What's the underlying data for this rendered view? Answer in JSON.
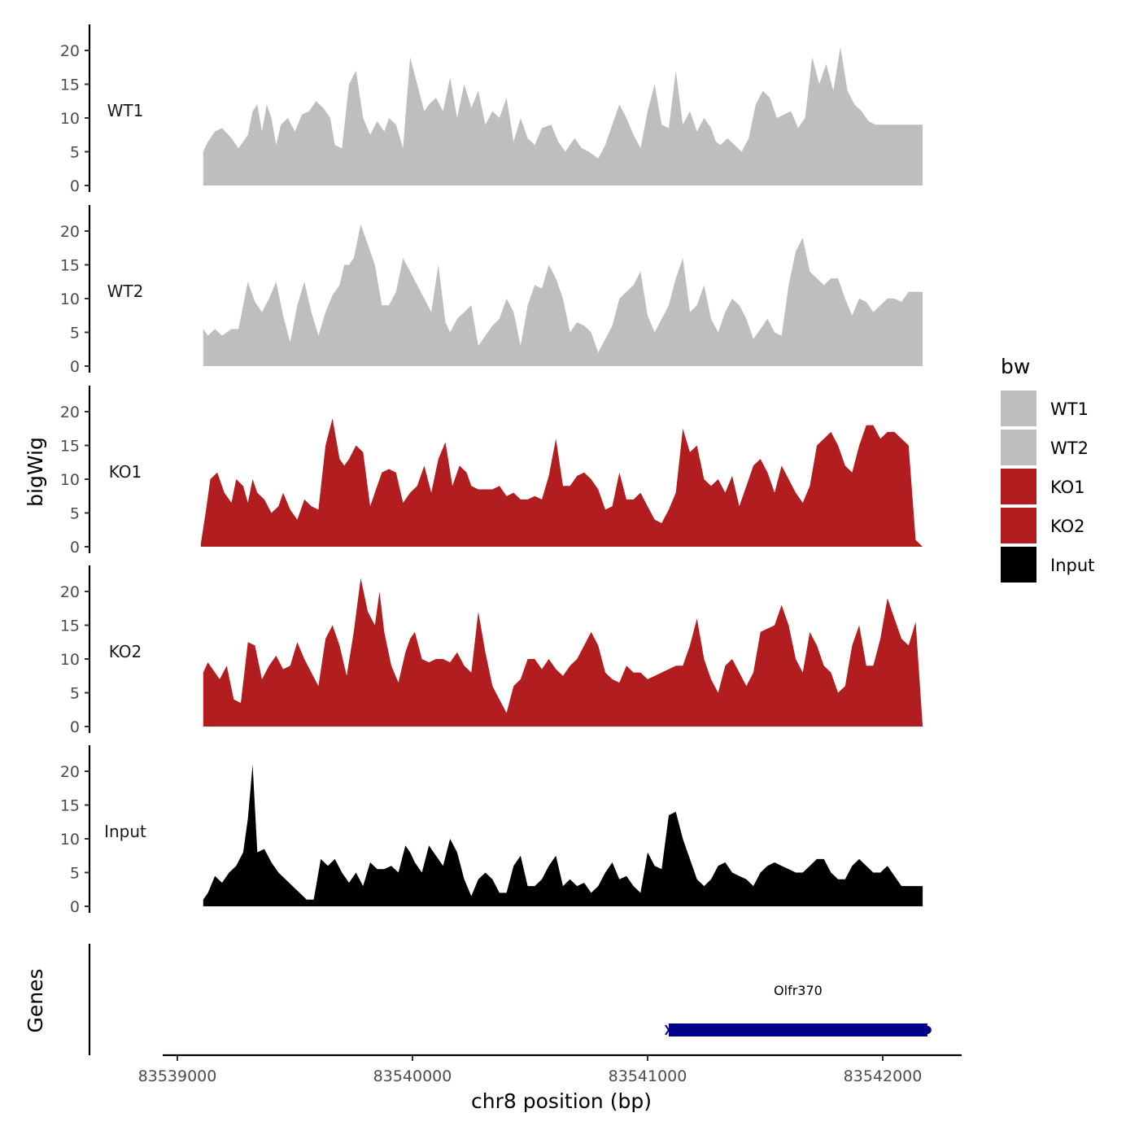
{
  "chart_data": {
    "type": "area",
    "xlabel": "chr8 position (bp)",
    "ylabel": "bigWig",
    "genes_label": "Genes",
    "xlim": [
      83538950,
      83542350
    ],
    "x_ticks": [
      83539000,
      83540000,
      83541000,
      83542000
    ],
    "x_tick_labels": [
      "83539000",
      "83540000",
      "83541000",
      "83542000"
    ],
    "ylim": [
      0,
      24
    ],
    "y_ticks": [
      0,
      5,
      10,
      15,
      20
    ],
    "y_tick_labels": [
      "0",
      "5",
      "10",
      "15",
      "20"
    ],
    "legend": {
      "title": "bw",
      "position": "right",
      "entries": [
        {
          "name": "WT1",
          "color": "#bebebe"
        },
        {
          "name": "WT2",
          "color": "#bebebe"
        },
        {
          "name": "KO1",
          "color": "#b21e20"
        },
        {
          "name": "KO2",
          "color": "#b21e20"
        },
        {
          "name": "Input",
          "color": "#000000"
        }
      ]
    },
    "grid": false,
    "tracks": [
      {
        "name": "WT1",
        "color": "#bebebe",
        "x": [
          83539110,
          83539130,
          83539160,
          83539190,
          83539230,
          83539260,
          83539300,
          83539320,
          83539340,
          83539360,
          83539380,
          83539400,
          83539420,
          83539440,
          83539470,
          83539500,
          83539530,
          83539560,
          83539590,
          83539620,
          83539650,
          83539670,
          83539700,
          83539730,
          83539760,
          83539790,
          83539820,
          83539850,
          83539880,
          83539900,
          83539930,
          83539960,
          83539990,
          83540020,
          83540050,
          83540070,
          83540100,
          83540130,
          83540160,
          83540190,
          83540220,
          83540250,
          83540280,
          83540310,
          83540340,
          83540370,
          83540400,
          83540430,
          83540460,
          83540490,
          83540520,
          83540550,
          83540590,
          83540620,
          83540650,
          83540690,
          83540720,
          83540750,
          83540790,
          83540820,
          83540850,
          83540880,
          83540910,
          83540940,
          83540970,
          83541000,
          83541030,
          83541060,
          83541090,
          83541120,
          83541150,
          83541180,
          83541210,
          83541240,
          83541270,
          83541290,
          83541310,
          83541340,
          83541370,
          83541400,
          83541430,
          83541460,
          83541490,
          83541520,
          83541550,
          83541580,
          83541610,
          83541640,
          83541670,
          83541700,
          83541730,
          83541760,
          83541790,
          83541820,
          83541850,
          83541880,
          83541910,
          83541940,
          83541970,
          83542000,
          83542030,
          83542060,
          83542090,
          83542120,
          83542170
        ],
        "y": [
          5,
          6.5,
          8,
          8.5,
          7,
          5.5,
          7.5,
          11,
          12,
          8,
          12,
          10,
          6,
          9,
          10,
          8,
          10.5,
          11,
          12.5,
          11.5,
          10,
          6,
          5.5,
          15,
          17,
          10,
          7.5,
          9.5,
          8,
          10,
          9,
          5.5,
          19,
          15,
          11,
          12,
          13,
          11,
          16,
          10,
          15,
          11.5,
          14,
          9,
          11,
          10,
          13,
          6.5,
          10,
          7,
          6,
          8.5,
          9,
          6.5,
          5,
          7,
          5.5,
          5,
          4,
          6,
          9,
          12,
          10,
          7.5,
          5.5,
          11,
          15,
          9,
          8.5,
          17,
          9,
          11,
          8,
          10,
          8.5,
          6.5,
          6,
          7,
          6,
          5,
          7,
          12,
          14,
          13,
          10,
          10.5,
          11,
          8.5,
          10,
          19,
          15,
          18,
          14,
          20.5,
          14,
          12,
          11,
          9.5,
          9,
          9,
          9,
          9,
          9,
          9,
          9
        ],
        "_note": ""
      },
      {
        "name": "WT2",
        "color": "#bebebe",
        "x": [
          83539110,
          83539130,
          83539160,
          83539190,
          83539230,
          83539260,
          83539280,
          83539300,
          83539330,
          83539360,
          83539390,
          83539420,
          83539450,
          83539480,
          83539510,
          83539540,
          83539570,
          83539600,
          83539630,
          83539660,
          83539690,
          83539710,
          83539730,
          83539750,
          83539780,
          83539810,
          83539840,
          83539870,
          83539900,
          83539930,
          83539960,
          83539990,
          83540020,
          83540050,
          83540080,
          83540110,
          83540140,
          83540160,
          83540190,
          83540220,
          83540250,
          83540280,
          83540310,
          83540340,
          83540370,
          83540400,
          83540430,
          83540460,
          83540490,
          83540520,
          83540550,
          83540580,
          83540610,
          83540640,
          83540670,
          83540700,
          83540730,
          83540760,
          83540790,
          83540820,
          83540850,
          83540880,
          83540910,
          83540940,
          83540970,
          83541000,
          83541030,
          83541060,
          83541090,
          83541120,
          83541150,
          83541180,
          83541210,
          83541240,
          83541270,
          83541300,
          83541330,
          83541360,
          83541390,
          83541420,
          83541450,
          83541480,
          83541510,
          83541540,
          83541570,
          83541600,
          83541630,
          83541660,
          83541690,
          83541720,
          83541750,
          83541780,
          83541810,
          83541840,
          83541870,
          83541900,
          83541930,
          83541960,
          83541990,
          83542020,
          83542050,
          83542080,
          83542110,
          83542140,
          83542170
        ],
        "y": [
          5.5,
          4.5,
          5.5,
          4.5,
          5.5,
          5.5,
          9,
          12.5,
          9.5,
          8,
          10,
          12.5,
          7.5,
          3.5,
          9,
          12.5,
          8,
          4.5,
          8,
          10.5,
          12,
          15,
          15,
          16,
          21,
          18,
          15,
          9,
          9,
          11,
          16,
          14,
          12,
          10,
          8,
          15,
          6.5,
          5,
          7,
          8,
          9,
          3,
          4.5,
          6,
          7,
          10,
          8,
          3,
          9,
          12,
          11.5,
          15,
          13,
          10,
          5,
          6.5,
          6,
          5,
          2,
          4,
          6,
          10,
          11,
          12,
          14,
          7.5,
          5,
          7,
          9,
          13,
          16,
          8,
          9,
          12,
          7,
          5,
          8,
          10,
          9,
          7,
          4,
          5.5,
          7,
          5,
          4.5,
          12,
          17,
          19,
          14,
          13,
          12,
          13,
          13,
          10,
          7.5,
          10,
          9.5,
          8,
          9,
          10,
          10,
          9.5,
          11,
          11,
          11
        ],
        "_note": ""
      },
      {
        "name": "KO1",
        "color": "#b21e20",
        "x": [
          83539100,
          83539120,
          83539140,
          83539170,
          83539200,
          83539230,
          83539250,
          83539280,
          83539300,
          83539320,
          83539340,
          83539370,
          83539400,
          83539430,
          83539450,
          83539480,
          83539510,
          83539540,
          83539570,
          83539600,
          83539630,
          83539660,
          83539690,
          83539710,
          83539730,
          83539760,
          83539790,
          83539820,
          83539850,
          83539870,
          83539900,
          83539930,
          83539960,
          83539990,
          83540020,
          83540050,
          83540080,
          83540110,
          83540140,
          83540170,
          83540200,
          83540230,
          83540250,
          83540280,
          83540310,
          83540340,
          83540370,
          83540400,
          83540430,
          83540460,
          83540490,
          83540520,
          83540550,
          83540580,
          83540610,
          83540640,
          83540670,
          83540700,
          83540730,
          83540760,
          83540790,
          83540820,
          83540850,
          83540880,
          83540910,
          83540940,
          83540970,
          83541000,
          83541030,
          83541060,
          83541090,
          83541120,
          83541150,
          83541180,
          83541210,
          83541240,
          83541270,
          83541300,
          83541330,
          83541360,
          83541390,
          83541420,
          83541450,
          83541480,
          83541510,
          83541540,
          83541570,
          83541600,
          83541630,
          83541660,
          83541690,
          83541720,
          83541750,
          83541780,
          83541810,
          83541840,
          83541870,
          83541900,
          83541930,
          83541960,
          83541990,
          83542020,
          83542050,
          83542080,
          83542110,
          83542140,
          83542170
        ],
        "y": [
          0.5,
          5,
          10,
          11,
          8,
          6.5,
          10,
          9,
          6.5,
          10,
          8,
          7,
          5,
          6,
          8,
          5.5,
          4,
          7,
          6,
          5.5,
          15,
          19,
          13,
          12,
          13,
          15,
          14,
          6,
          9,
          11,
          11.5,
          11,
          6.5,
          8,
          9,
          12,
          8,
          13,
          15.5,
          9,
          12,
          11,
          9,
          8.5,
          8.5,
          8.5,
          9,
          7.5,
          8,
          7,
          7,
          7.5,
          7,
          10.5,
          16,
          9,
          9,
          10.5,
          11,
          10,
          8.5,
          5.5,
          6,
          11,
          7,
          7,
          8,
          6,
          4,
          3.5,
          5.5,
          8,
          17.5,
          14,
          15,
          10,
          9,
          10,
          8,
          10.5,
          6,
          9,
          12,
          13,
          11,
          8,
          12,
          10,
          8,
          6.5,
          9,
          15,
          16,
          17,
          15,
          12,
          11,
          15,
          18,
          18,
          16,
          17,
          17,
          16,
          15,
          1,
          0
        ],
        "_note": ""
      },
      {
        "name": "KO2",
        "color": "#b21e20",
        "x": [
          83539110,
          83539130,
          83539150,
          83539180,
          83539210,
          83539240,
          83539270,
          83539300,
          83539330,
          83539360,
          83539390,
          83539420,
          83539450,
          83539480,
          83539510,
          83539540,
          83539570,
          83539600,
          83539630,
          83539660,
          83539690,
          83539720,
          83539750,
          83539780,
          83539810,
          83539840,
          83539860,
          83539880,
          83539910,
          83539940,
          83539970,
          83539990,
          83540010,
          83540040,
          83540070,
          83540100,
          83540130,
          83540160,
          83540190,
          83540220,
          83540250,
          83540280,
          83540310,
          83540340,
          83540370,
          83540400,
          83540430,
          83540460,
          83540490,
          83540520,
          83540550,
          83540580,
          83540610,
          83540640,
          83540670,
          83540700,
          83540730,
          83540760,
          83540790,
          83540820,
          83540850,
          83540880,
          83540910,
          83540940,
          83540970,
          83541000,
          83541030,
          83541060,
          83541090,
          83541120,
          83541150,
          83541180,
          83541210,
          83541240,
          83541270,
          83541300,
          83541330,
          83541360,
          83541390,
          83541420,
          83541450,
          83541480,
          83541510,
          83541540,
          83541570,
          83541600,
          83541630,
          83541660,
          83541690,
          83541720,
          83541750,
          83541780,
          83541810,
          83541840,
          83541870,
          83541900,
          83541930,
          83541960,
          83541990,
          83542020,
          83542050,
          83542080,
          83542110,
          83542140,
          83542170
        ],
        "y": [
          8,
          9.5,
          8.5,
          7,
          9,
          4,
          3.5,
          12.5,
          12,
          7,
          9,
          10.5,
          8.5,
          9,
          12.5,
          10,
          8,
          6,
          13,
          15,
          12,
          7.5,
          14,
          22,
          17,
          15,
          20,
          14,
          9,
          6.5,
          11,
          13,
          14,
          10,
          9.5,
          10,
          10,
          9.5,
          11,
          9,
          8,
          17,
          11,
          6,
          4,
          2,
          6,
          7,
          10,
          10,
          8.5,
          10,
          8.5,
          7.5,
          9,
          10,
          12,
          14,
          12,
          8,
          7,
          6.5,
          9,
          8,
          8,
          7,
          7.5,
          8,
          8.5,
          9,
          9,
          12,
          16,
          10,
          7,
          5,
          9,
          10,
          8,
          6,
          8,
          14,
          14.5,
          15,
          18,
          15,
          10,
          8,
          14,
          12,
          9,
          8,
          5,
          6,
          12,
          15,
          9,
          9,
          13,
          19,
          16,
          13,
          12,
          15.5,
          0
        ],
        "_note": ""
      },
      {
        "name": "Input",
        "color": "#000000",
        "x": [
          83539110,
          83539130,
          83539160,
          83539190,
          83539220,
          83539250,
          83539280,
          83539300,
          83539320,
          83539340,
          83539370,
          83539400,
          83539430,
          83539460,
          83539490,
          83539520,
          83539550,
          83539580,
          83539610,
          83539640,
          83539670,
          83539700,
          83539730,
          83539760,
          83539790,
          83539820,
          83539850,
          83539880,
          83539910,
          83539940,
          83539970,
          83539990,
          83540010,
          83540040,
          83540070,
          83540100,
          83540130,
          83540160,
          83540190,
          83540220,
          83540250,
          83540280,
          83540310,
          83540340,
          83540370,
          83540400,
          83540430,
          83540460,
          83540490,
          83540520,
          83540550,
          83540580,
          83540610,
          83540640,
          83540670,
          83540700,
          83540730,
          83540760,
          83540790,
          83540820,
          83540850,
          83540880,
          83540910,
          83540940,
          83540970,
          83541000,
          83541030,
          83541060,
          83541090,
          83541120,
          83541150,
          83541180,
          83541210,
          83541240,
          83541270,
          83541300,
          83541330,
          83541360,
          83541390,
          83541420,
          83541450,
          83541480,
          83541510,
          83541540,
          83541570,
          83541600,
          83541630,
          83541660,
          83541690,
          83541720,
          83541750,
          83541780,
          83541810,
          83541840,
          83541870,
          83541900,
          83541930,
          83541960,
          83541990,
          83542020,
          83542050,
          83542080,
          83542110,
          83542140,
          83542170
        ],
        "y": [
          1,
          2,
          4.5,
          3.5,
          5,
          6,
          8,
          13,
          21,
          8,
          8.5,
          6.5,
          5,
          4,
          3,
          2,
          1,
          1,
          7,
          6,
          7,
          5,
          3.5,
          5,
          3,
          6.5,
          5.5,
          5.5,
          6,
          5,
          9,
          8,
          6.5,
          5,
          9,
          7.5,
          6,
          10,
          8,
          4,
          1.5,
          4,
          5,
          4,
          2,
          2,
          6,
          7.5,
          3,
          3,
          4,
          6,
          7.5,
          3,
          4,
          3,
          3.5,
          2,
          3,
          5,
          6.5,
          4,
          4.5,
          3,
          2,
          8,
          6,
          5.5,
          13.5,
          14,
          10,
          7,
          4,
          3,
          4,
          6,
          6.5,
          5,
          4.5,
          4,
          3,
          5,
          6,
          6.5,
          6,
          5.5,
          5,
          5,
          6,
          7,
          7,
          5,
          4,
          4,
          6,
          7,
          6,
          5,
          5,
          6,
          4.5,
          3,
          3,
          3,
          3
        ],
        "_note": ""
      }
    ],
    "genes": [
      {
        "name": "Olfr370",
        "start": 83541090,
        "end": 83542190,
        "strand": "-",
        "color": "#00008b"
      }
    ]
  }
}
